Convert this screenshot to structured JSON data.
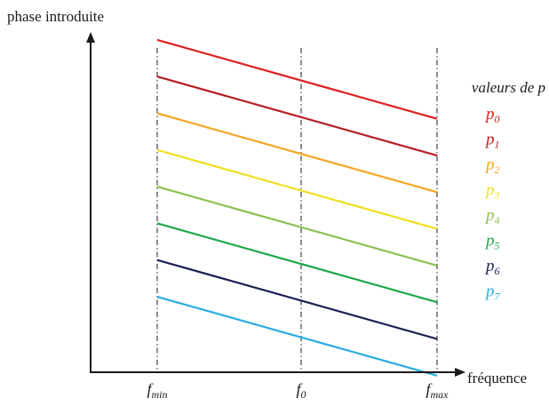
{
  "chart_data": {
    "type": "line",
    "ylabel": "phase introduite",
    "xlabel": "fréquence",
    "x_ticks": [
      {
        "base": "f",
        "sub": "min"
      },
      {
        "base": "f",
        "sub": "0"
      },
      {
        "base": "f",
        "sub": "max"
      }
    ],
    "x": [
      0,
      1
    ],
    "ylim": [
      0,
      10
    ],
    "legend": {
      "title": "valeurs de p",
      "placement": "right"
    },
    "series": [
      {
        "base": "p",
        "sub": "0",
        "color": "#e0201e",
        "values": [
          9.3,
          7.15
        ]
      },
      {
        "base": "p",
        "sub": "1",
        "color": "#b81e24",
        "values": [
          8.3,
          6.15
        ]
      },
      {
        "base": "p",
        "sub": "2",
        "color": "#f5a623",
        "values": [
          7.3,
          5.15
        ]
      },
      {
        "base": "p",
        "sub": "3",
        "color": "#f0e020",
        "values": [
          6.3,
          4.15
        ]
      },
      {
        "base": "p",
        "sub": "4",
        "color": "#8cc152",
        "values": [
          5.3,
          3.15
        ]
      },
      {
        "base": "p",
        "sub": "5",
        "color": "#1fa84a",
        "values": [
          4.3,
          2.15
        ]
      },
      {
        "base": "p",
        "sub": "6",
        "color": "#1b2052",
        "values": [
          3.3,
          1.15
        ]
      },
      {
        "base": "p",
        "sub": "7",
        "color": "#29abe2",
        "values": [
          2.3,
          0.15
        ]
      }
    ]
  }
}
